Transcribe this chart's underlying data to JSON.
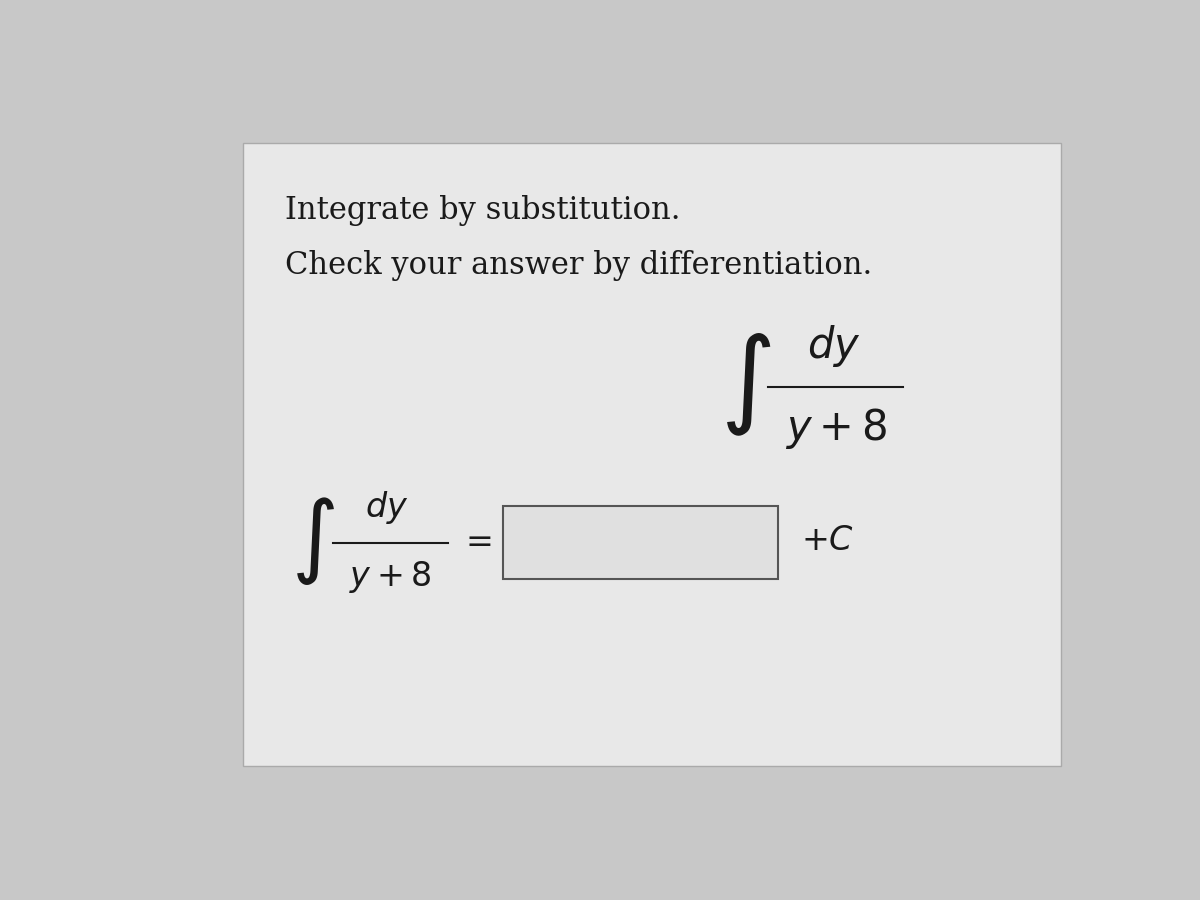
{
  "title_line1": "Integrate by substitution.",
  "title_line2": "Check your answer by differentiation.",
  "bg_color": "#c8c8c8",
  "card_color": "#e8e8e8",
  "text_color": "#1a1a1a",
  "font_size_title": 22,
  "font_size_math_large": 30,
  "font_size_math_small": 24,
  "font_size_integral_large": 54,
  "font_size_integral_small": 46
}
